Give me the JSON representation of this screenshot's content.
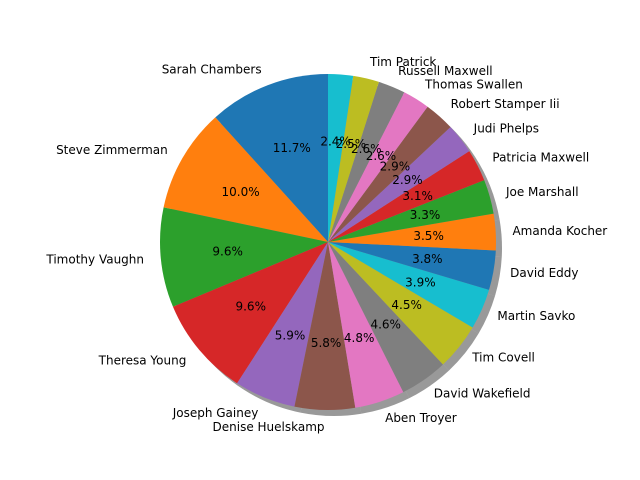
{
  "chart_data": {
    "type": "pie",
    "title": "",
    "shadow": true,
    "start_angle_deg": 90,
    "direction": "counterclockwise",
    "slices": [
      {
        "label": "Sarah Chambers",
        "value": 11.7,
        "pct_text": "11.7%",
        "color": "#1f77b4"
      },
      {
        "label": "Steve Zimmerman",
        "value": 10.0,
        "pct_text": "10.0%",
        "color": "#ff7f0e"
      },
      {
        "label": "Timothy Vaughn",
        "value": 9.6,
        "pct_text": "9.6%",
        "color": "#2ca02c"
      },
      {
        "label": "Theresa Young",
        "value": 9.6,
        "pct_text": "9.6%",
        "color": "#d62728"
      },
      {
        "label": "Joseph Gainey",
        "value": 5.9,
        "pct_text": "5.9%",
        "color": "#9467bd"
      },
      {
        "label": "Denise Huelskamp",
        "value": 5.8,
        "pct_text": "5.8%",
        "color": "#8c564b"
      },
      {
        "label": "Aben Troyer",
        "value": 4.8,
        "pct_text": "4.8%",
        "color": "#e377c2"
      },
      {
        "label": "David Wakefield",
        "value": 4.6,
        "pct_text": "4.6%",
        "color": "#7f7f7f"
      },
      {
        "label": "Tim Covell",
        "value": 4.5,
        "pct_text": "4.5%",
        "color": "#bcbd22"
      },
      {
        "label": "Martin Savko",
        "value": 3.9,
        "pct_text": "3.9%",
        "color": "#17becf"
      },
      {
        "label": "David Eddy",
        "value": 3.8,
        "pct_text": "3.8%",
        "color": "#1f77b4"
      },
      {
        "label": "Amanda Kocher",
        "value": 3.5,
        "pct_text": "3.5%",
        "color": "#ff7f0e"
      },
      {
        "label": "Joe Marshall",
        "value": 3.3,
        "pct_text": "3.3%",
        "color": "#2ca02c"
      },
      {
        "label": "Patricia Maxwell",
        "value": 3.1,
        "pct_text": "3.1%",
        "color": "#d62728"
      },
      {
        "label": "Judi Phelps",
        "value": 2.9,
        "pct_text": "2.9%",
        "color": "#9467bd"
      },
      {
        "label": "Robert Stamper Iii",
        "value": 2.9,
        "pct_text": "2.9%",
        "color": "#8c564b"
      },
      {
        "label": "Thomas Swallen",
        "value": 2.6,
        "pct_text": "2.6%",
        "color": "#e377c2"
      },
      {
        "label": "Russell Maxwell",
        "value": 2.6,
        "pct_text": "2.6%",
        "color": "#7f7f7f"
      },
      {
        "label": "Tim Patrick",
        "value": 2.5,
        "pct_text": "2.5%",
        "color": "#bcbd22"
      },
      {
        "label": "",
        "value": 2.4,
        "pct_text": "2.4%",
        "color": "#17becf"
      }
    ]
  }
}
